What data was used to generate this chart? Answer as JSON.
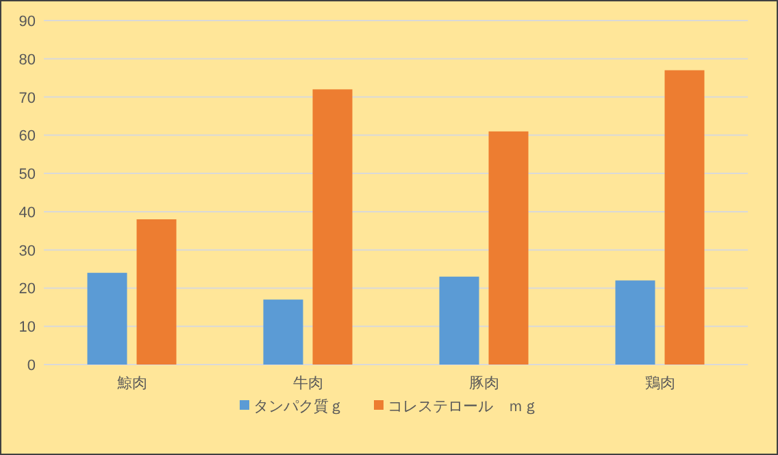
{
  "chart_data": {
    "type": "bar",
    "categories": [
      "鯨肉",
      "牛肉",
      "豚肉",
      "鶏肉"
    ],
    "series": [
      {
        "name": "タンパク質ｇ",
        "color": "#5b9bd5",
        "values": [
          24,
          17,
          23,
          22
        ]
      },
      {
        "name": "コレステロール　ｍｇ",
        "color": "#ed7d31",
        "values": [
          38,
          72,
          61,
          77
        ]
      }
    ],
    "ylim": [
      0,
      90
    ],
    "yticks": [
      0,
      10,
      20,
      30,
      40,
      50,
      60,
      70,
      80,
      90
    ],
    "grid": "y",
    "legend": "bottom"
  }
}
